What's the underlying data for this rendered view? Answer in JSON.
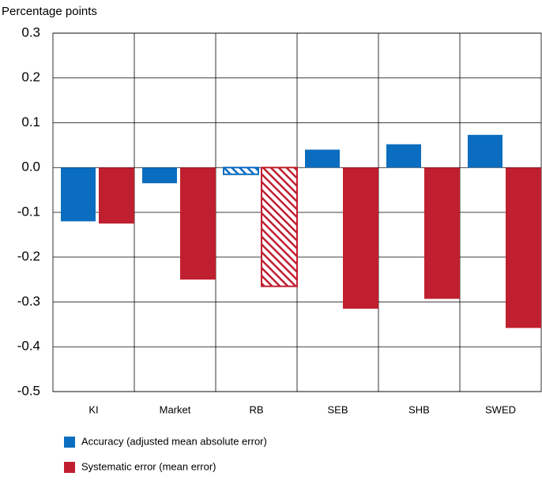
{
  "chart_data": {
    "type": "bar",
    "y_axis_label": "Percentage points",
    "categories": [
      "KI",
      "Market",
      "RB",
      "SEB",
      "SHB",
      "SWED"
    ],
    "series": [
      {
        "name": "Accuracy (adjusted mean absolute error)",
        "color": "#0a6dbf",
        "values": [
          -0.12,
          -0.035,
          -0.015,
          0.04,
          0.052,
          0.073
        ],
        "hatched": [
          false,
          false,
          true,
          false,
          false,
          false
        ]
      },
      {
        "name": "Systematic error (mean error)",
        "color": "#c01f2f",
        "values": [
          -0.125,
          -0.25,
          -0.265,
          -0.315,
          -0.293,
          -0.358
        ],
        "hatched": [
          false,
          false,
          true,
          false,
          false,
          false
        ]
      }
    ],
    "ylim": [
      -0.5,
      0.3
    ],
    "yticks": [
      -0.5,
      -0.4,
      -0.3,
      -0.2,
      -0.1,
      {
        "value": 0,
        "label": "0.0"
      },
      0.1,
      0.2,
      0.3
    ],
    "grid": true,
    "legend": "bottom"
  }
}
